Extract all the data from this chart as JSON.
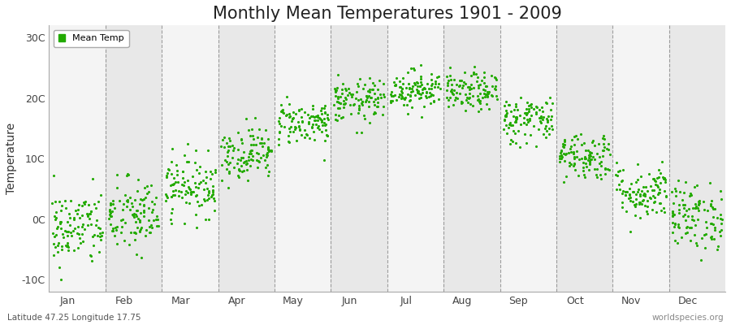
{
  "title": "Monthly Mean Temperatures 1901 - 2009",
  "ylabel": "Temperature",
  "subtitle_left": "Latitude 47.25 Longitude 17.75",
  "subtitle_right": "worldspecies.org",
  "legend_label": "Mean Temp",
  "ylim": [
    -12,
    32
  ],
  "yticks": [
    -10,
    0,
    10,
    20,
    30
  ],
  "ytick_labels": [
    "-10C",
    "0C",
    "10C",
    "20C",
    "30C"
  ],
  "month_labels": [
    "Jan",
    "Feb",
    "Mar",
    "Apr",
    "May",
    "Jun",
    "Jul",
    "Aug",
    "Sep",
    "Oct",
    "Nov",
    "Dec"
  ],
  "monthly_means": [
    -1.5,
    0.5,
    5.5,
    11.0,
    16.0,
    19.5,
    21.5,
    21.0,
    16.5,
    10.5,
    4.5,
    0.5
  ],
  "monthly_stds": [
    3.2,
    3.2,
    2.5,
    2.2,
    1.8,
    1.8,
    1.6,
    1.6,
    2.0,
    2.0,
    2.3,
    2.8
  ],
  "n_years": 109,
  "dot_color": "#22aa00",
  "dot_size": 5,
  "band_color_odd": "#e8e8e8",
  "band_color_even": "#f4f4f4",
  "grid_color": "#666666",
  "title_fontsize": 15,
  "axis_fontsize": 10,
  "tick_fontsize": 9,
  "seed": 42
}
